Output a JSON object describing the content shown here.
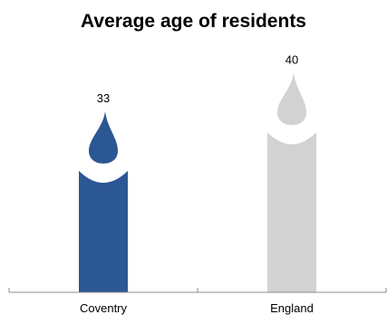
{
  "chart_data": {
    "type": "bar",
    "title": "Average age of residents",
    "categories": [
      "Coventry",
      "England"
    ],
    "values": [
      33,
      40
    ],
    "data_labels": [
      "33",
      "40"
    ],
    "bar_style": "candle",
    "ylim": [
      0,
      44
    ],
    "grid": false,
    "legend": "none",
    "colors": [
      "#2b5794",
      "#d2d2d2"
    ],
    "axis_color": "#8c8c8c"
  }
}
